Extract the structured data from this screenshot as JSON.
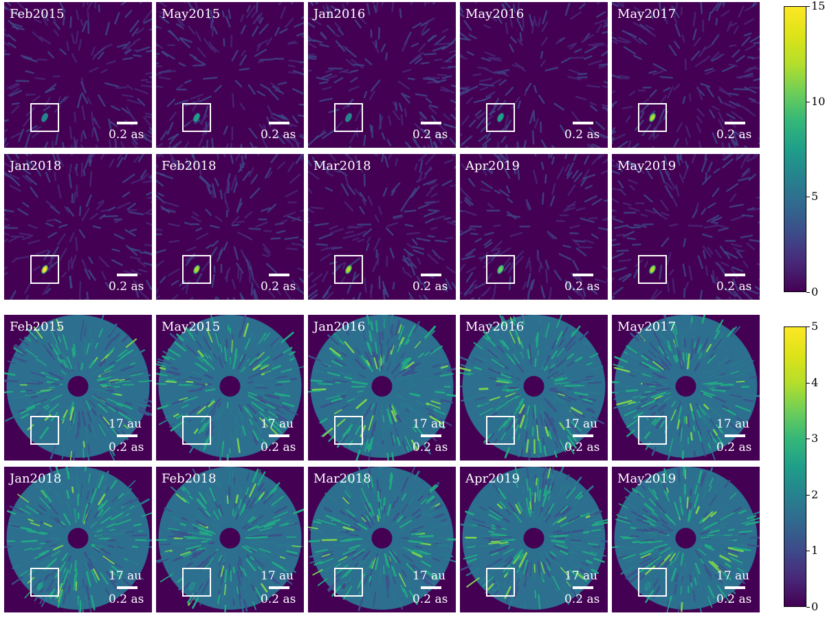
{
  "rows": [
    {
      "id": "snr-top-1",
      "labels": [
        "Feb2015",
        "May2015",
        "Jan2016",
        "May2016",
        "May2017"
      ],
      "scale": "0.2 as",
      "au": "",
      "source": [
        0.45,
        0.55,
        0.4,
        0.6,
        0.85
      ]
    },
    {
      "id": "snr-top-2",
      "labels": [
        "Jan2018",
        "Feb2018",
        "Mar2018",
        "Apr2019",
        "May2019"
      ],
      "scale": "0.2 as",
      "au": "",
      "source": [
        0.95,
        0.9,
        0.85,
        0.8,
        0.85
      ]
    },
    {
      "id": "residual-1",
      "labels": [
        "Feb2015",
        "May2015",
        "Jan2016",
        "May2016",
        "May2017"
      ],
      "scale": "0.2 as",
      "au": "17 au",
      "source": [
        0,
        0,
        0,
        0,
        0
      ]
    },
    {
      "id": "residual-2",
      "labels": [
        "Jan2018",
        "Feb2018",
        "Mar2018",
        "Apr2019",
        "May2019"
      ],
      "scale": "0.2 as",
      "au": "17 au",
      "source": [
        0.5,
        0.4,
        0.25,
        0.35,
        0.4
      ]
    }
  ],
  "colorbars": [
    {
      "id": "colorbar-top",
      "min": 0,
      "max": 15,
      "ticks": [
        "0",
        "5",
        "10",
        "15"
      ]
    },
    {
      "id": "colorbar-bottom",
      "min": 0,
      "max": 5,
      "ticks": [
        "0",
        "1",
        "2",
        "3",
        "4",
        "5"
      ]
    }
  ],
  "colors": {
    "background": "#440154",
    "low": "#3b528b",
    "mid": "#21918c",
    "high": "#5ec962",
    "peak": "#fde725"
  }
}
